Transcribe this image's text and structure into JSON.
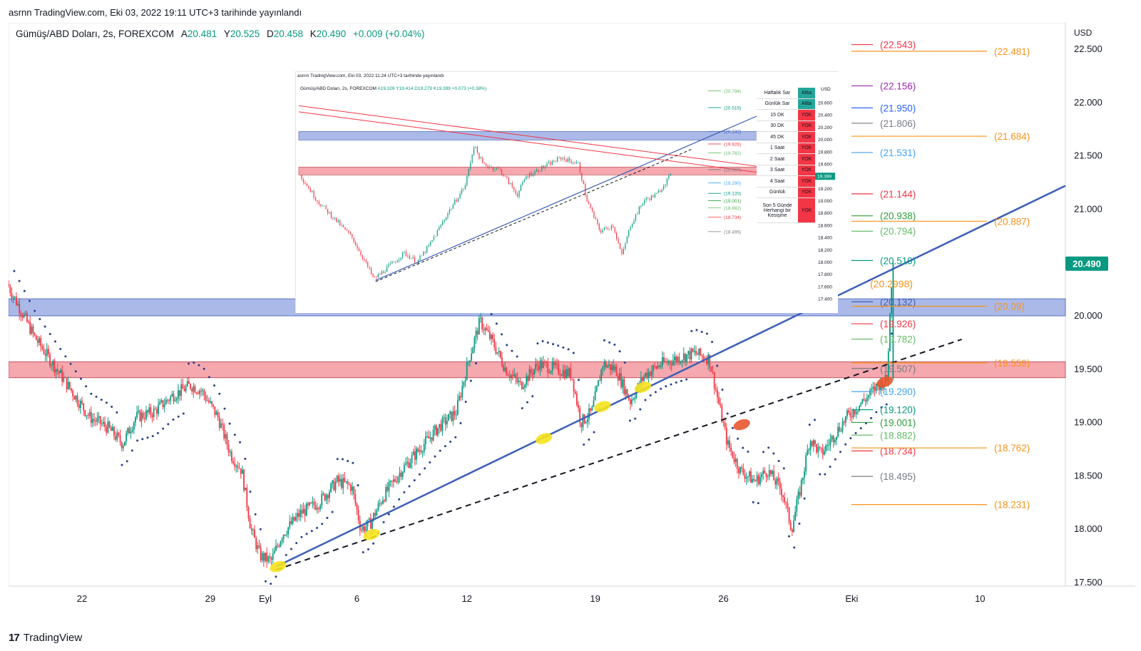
{
  "header": {
    "published": "asrnn TradingView.com, Eki 03, 2022 19:11 UTC+3 tarihinde yayınlandı"
  },
  "symbol": {
    "name": "Gümüş/ABD Doları, 2s, FOREXCOM",
    "open_label": "A",
    "open": "20.481",
    "high_label": "Y",
    "high": "20.525",
    "low_label": "D",
    "low": "20.458",
    "close_label": "K",
    "close": "20.490",
    "change": "+0.009 (+0.04%)"
  },
  "colors": {
    "up": "#089981",
    "down": "#f23645",
    "trend_blue": "#3d5fb6",
    "orange": "#f7931a",
    "blue_zone": "#8fa2e0",
    "red_zone": "#f28b93",
    "price_badge": "#089981"
  },
  "chart_data": [
    {
      "type": "candlestick",
      "title": "",
      "currency": "USD",
      "ylim": [
        17.5,
        22.55
      ],
      "y_ticks": [
        "17.500",
        "18.000",
        "18.500",
        "19.000",
        "19.500",
        "20.000",
        "20.500",
        "21.000",
        "21.500",
        "22.000",
        "22.500"
      ],
      "x_ticks": [
        {
          "label": "22",
          "day": 22
        },
        {
          "label": "29",
          "day": 29
        },
        {
          "label": "Eyl",
          "day": 32
        },
        {
          "label": "6",
          "day": 37
        },
        {
          "label": "12",
          "day": 43
        },
        {
          "label": "19",
          "day": 50
        },
        {
          "label": "26",
          "day": 57
        },
        {
          "label": "Eki",
          "day": 64
        },
        {
          "label": "10",
          "day": 71
        }
      ],
      "xlim_days": [
        18,
        80
      ],
      "last_price": "20.490",
      "price_path": [
        [
          18.0,
          20.3
        ],
        [
          19.5,
          19.8
        ],
        [
          20.5,
          19.55
        ],
        [
          21.5,
          19.3
        ],
        [
          22.5,
          19.05
        ],
        [
          23.5,
          18.95
        ],
        [
          24.3,
          18.8
        ],
        [
          25.0,
          19.05
        ],
        [
          26.0,
          19.1
        ],
        [
          27.0,
          19.25
        ],
        [
          28.0,
          19.35
        ],
        [
          28.6,
          19.3
        ],
        [
          29.5,
          19.05
        ],
        [
          30.2,
          18.7
        ],
        [
          30.8,
          18.55
        ],
        [
          31.3,
          18.0
        ],
        [
          31.8,
          17.75
        ],
        [
          32.4,
          17.7
        ],
        [
          33.0,
          17.95
        ],
        [
          34.0,
          18.15
        ],
        [
          35.0,
          18.25
        ],
        [
          36.0,
          18.45
        ],
        [
          36.8,
          18.4
        ],
        [
          37.3,
          18.0
        ],
        [
          37.8,
          18.05
        ],
        [
          38.5,
          18.3
        ],
        [
          39.5,
          18.55
        ],
        [
          40.5,
          18.75
        ],
        [
          41.5,
          18.95
        ],
        [
          42.5,
          19.1
        ],
        [
          43.2,
          19.6
        ],
        [
          43.8,
          19.95
        ],
        [
          44.5,
          19.75
        ],
        [
          45.2,
          19.5
        ],
        [
          46.0,
          19.35
        ],
        [
          47.0,
          19.55
        ],
        [
          48.0,
          19.5
        ],
        [
          48.8,
          19.45
        ],
        [
          49.3,
          19.0
        ],
        [
          49.9,
          19.1
        ],
        [
          50.5,
          19.55
        ],
        [
          51.2,
          19.5
        ],
        [
          52.0,
          19.2
        ],
        [
          52.8,
          19.45
        ],
        [
          53.7,
          19.55
        ],
        [
          54.5,
          19.6
        ],
        [
          55.5,
          19.65
        ],
        [
          56.3,
          19.6
        ],
        [
          56.8,
          19.2
        ],
        [
          57.3,
          18.8
        ],
        [
          58.0,
          18.55
        ],
        [
          58.8,
          18.45
        ],
        [
          59.5,
          18.55
        ],
        [
          60.3,
          18.35
        ],
        [
          60.8,
          18.0
        ],
        [
          61.3,
          18.4
        ],
        [
          61.8,
          18.85
        ],
        [
          62.4,
          18.7
        ],
        [
          63.0,
          18.85
        ],
        [
          63.8,
          19.05
        ],
        [
          64.4,
          19.15
        ],
        [
          65.0,
          19.25
        ],
        [
          65.5,
          19.35
        ],
        [
          66.0,
          19.4
        ],
        [
          66.3,
          20.49
        ]
      ],
      "zones": [
        {
          "label": "blue resistance",
          "from": 20.0,
          "to": 20.16
        },
        {
          "label": "red zone",
          "from": 19.42,
          "to": 19.57
        }
      ],
      "levels_left": [
        {
          "value": "(22.543)",
          "color": "#f23645",
          "y": 22.543
        },
        {
          "value": "(22.156)",
          "color": "#9c27b0",
          "y": 22.156
        },
        {
          "value": "(21.950)",
          "color": "#2962ff",
          "y": 21.95
        },
        {
          "value": "(21.806)",
          "color": "#787b86",
          "y": 21.806
        },
        {
          "value": "(21.531)",
          "color": "#42a5f5",
          "y": 21.531
        },
        {
          "value": "(21.144)",
          "color": "#f23645",
          "y": 21.144
        },
        {
          "value": "(20.938)",
          "color": "#2e9e3a",
          "y": 20.938
        },
        {
          "value": "(20.794)",
          "color": "#66bb6a",
          "y": 20.794
        },
        {
          "value": "(20.519)",
          "color": "#089981",
          "y": 20.519
        },
        {
          "value": "(20.132)",
          "color": "#3d5fb6",
          "y": 20.132
        },
        {
          "value": "(19.926)",
          "color": "#f23645",
          "y": 19.926
        },
        {
          "value": "(19.782)",
          "color": "#66bb6a",
          "y": 19.782
        },
        {
          "value": "(19.507)",
          "color": "#787b86",
          "y": 19.507
        },
        {
          "value": "(19.290)",
          "color": "#42a5f5",
          "y": 19.29
        },
        {
          "value": "(19.120)",
          "color": "#089981",
          "y": 19.12
        },
        {
          "value": "(19.001)",
          "color": "#2e9e3a",
          "y": 19.001
        },
        {
          "value": "(18.882)",
          "color": "#66bb6a",
          "y": 18.882
        },
        {
          "value": "(18.734)",
          "color": "#f23645",
          "y": 18.734
        },
        {
          "value": "(18.495)",
          "color": "#787b86",
          "y": 18.495
        }
      ],
      "levels_right": [
        {
          "value": "(22.481)",
          "y": 22.481
        },
        {
          "value": "(21.684)",
          "y": 21.684
        },
        {
          "value": "(20.887)",
          "y": 20.887
        },
        {
          "value": "(20.09)",
          "y": 20.09
        },
        {
          "value": "(19.559)",
          "y": 19.559
        },
        {
          "value": "(18.762)",
          "y": 18.762
        },
        {
          "value": "(18.231)",
          "y": 18.231
        }
      ],
      "pivot_value": "(20.2998)",
      "pivot_y": 20.2998
    },
    {
      "type": "candlestick",
      "title": "",
      "published": "asrnn TradingView.com, Eki 03, 2022 11:24 UTC+3 tarihinde yayınlandı",
      "symbol_line": "Gümüş/ABD Doları, 2s, FOREXCOM",
      "ohlc": "A19.326 Y19.414 D19.279 K19.399 +0.073 (+0.38%)",
      "currency": "USD",
      "last_price": "19.399",
      "y_ticks": [
        "17.400",
        "17.600",
        "17.800",
        "18.000",
        "18.200",
        "18.400",
        "18.600",
        "18.800",
        "19.000",
        "19.200",
        "19.400",
        "19.600",
        "19.800",
        "20.000",
        "20.200",
        "20.400",
        "20.600"
      ],
      "levels": [
        "(20.794)",
        "(20.519)",
        "(20.132)",
        "(19.926)",
        "(19.782)",
        "(19.507)",
        "(19.290)",
        "(19.120)",
        "(19.001)",
        "(18.882)",
        "(18.734)",
        "(18.495)"
      ],
      "table": [
        {
          "name": "Haftalık Sar",
          "status": "Altta",
          "color": "#26a69a"
        },
        {
          "name": "Günlük Sar",
          "status": "Altta",
          "color": "#26a69a"
        },
        {
          "name": "15 DK",
          "status": "YOK",
          "color": "#f23645"
        },
        {
          "name": "30 DK",
          "status": "YOK",
          "color": "#f23645"
        },
        {
          "name": "45 DK",
          "status": "YOK",
          "color": "#f23645"
        },
        {
          "name": "1 Saat",
          "status": "YOK",
          "color": "#f23645"
        },
        {
          "name": "2 Saat",
          "status": "YOK",
          "color": "#f23645"
        },
        {
          "name": "3 Saat",
          "status": "YOK",
          "color": "#f23645"
        },
        {
          "name": "4 Saat",
          "status": "YOK",
          "color": "#f23645"
        },
        {
          "name": "Günlük",
          "status": "YOK",
          "color": "#f23645"
        },
        {
          "name": "Son 5 Günde Herhangi bir Kesişme",
          "status": "YOK",
          "color": "#f23645"
        }
      ]
    }
  ],
  "footer": {
    "brand": "TradingView",
    "brand_mark": "17"
  }
}
